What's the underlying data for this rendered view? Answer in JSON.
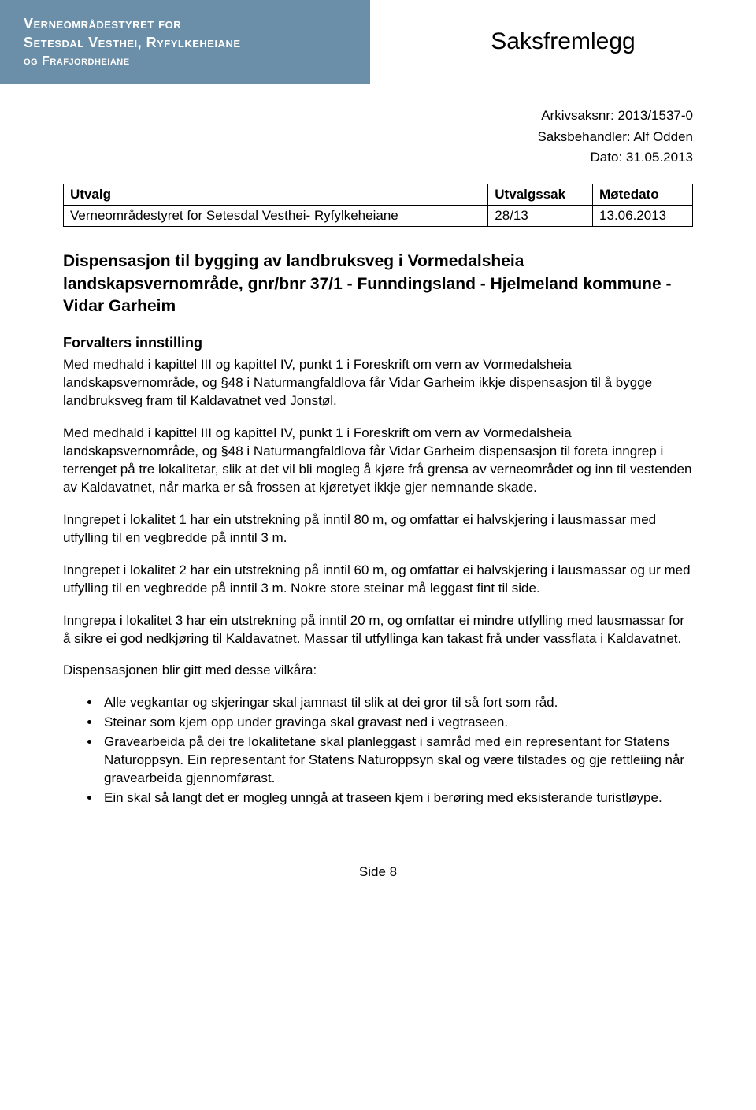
{
  "header": {
    "org_line1": "Verneområdestyret for",
    "org_line2": "Setesdal Vesthei, Ryfylkeheiane",
    "org_line3": "og Frafjordheiane",
    "doc_type": "Saksfremlegg"
  },
  "meta": {
    "arkivsaksnr_label": "Arkivsaksnr:",
    "arkivsaksnr_value": "2013/1537-0",
    "saksbehandler_label": "Saksbehandler:",
    "saksbehandler_value": "Alf Odden",
    "dato_label": "Dato:",
    "dato_value": "31.05.2013"
  },
  "table": {
    "col_utvalg": "Utvalg",
    "col_utvalgssak": "Utvalgssak",
    "col_motedato": "Møtedato",
    "row_utvalg": "Verneområdestyret for Setesdal Vesthei- Ryfylkeheiane",
    "row_sak": "28/13",
    "row_dato": "13.06.2013"
  },
  "title": "Dispensasjon til bygging av landbruksveg i Vormedalsheia landskapsvernområde, gnr/bnr 37/1 - Funndingsland - Hjelmeland kommune - Vidar Garheim",
  "section_heading": "Forvalters innstilling",
  "paragraphs": {
    "p1": "Med medhald i kapittel III og kapittel IV, punkt 1 i Foreskrift om vern av Vormedalsheia landskapsvernområde, og §48 i Naturmangfaldlova får Vidar Garheim ikkje dispensasjon til å bygge landbruksveg fram til Kaldavatnet ved Jonstøl.",
    "p2": "Med medhald i kapittel III og kapittel IV, punkt 1 i Foreskrift om vern av Vormedalsheia landskapsvernområde, og §48 i Naturmangfaldlova får Vidar Garheim dispensasjon til foreta inngrep i terrenget på tre lokalitetar, slik at det vil bli mogleg å kjøre frå grensa av verneområdet og inn til vestenden av Kaldavatnet, når marka er så frossen at kjøretyet ikkje gjer nemnande skade.",
    "p3": "Inngrepet i lokalitet 1 har ein utstrekning på inntil 80 m, og omfattar ei halvskjering i lausmassar med utfylling til en vegbredde på inntil 3 m.",
    "p4": "Inngrepet i lokalitet 2 har ein utstrekning på inntil 60 m, og omfattar ei halvskjering i lausmassar og ur med utfylling til en vegbredde på inntil 3 m. Nokre store steinar må leggast fint til side.",
    "p5": "Inngrepa i lokalitet 3 har ein utstrekning på inntil 20 m, og omfattar ei mindre utfylling med lausmassar for å sikre ei god nedkjøring til Kaldavatnet. Massar til utfyllinga kan takast frå under vassflata i Kaldavatnet.",
    "p6": "Dispensasjonen blir gitt med desse vilkåra:"
  },
  "vilkar": [
    "Alle vegkantar og skjeringar skal jamnast til slik at dei gror til så fort som råd.",
    "Steinar som kjem opp under gravinga skal gravast ned i vegtraseen.",
    "Gravearbeida på dei tre lokalitetane skal planleggast i samråd med ein representant for Statens Naturoppsyn. Ein representant for Statens Naturoppsyn skal og være tilstades og gje rettleiing når gravearbeida gjennomførast.",
    "Ein skal så langt det er mogleg unngå at traseen kjem i berøring med eksisterande turistløype."
  ],
  "footer": {
    "page_label": "Side 8"
  }
}
